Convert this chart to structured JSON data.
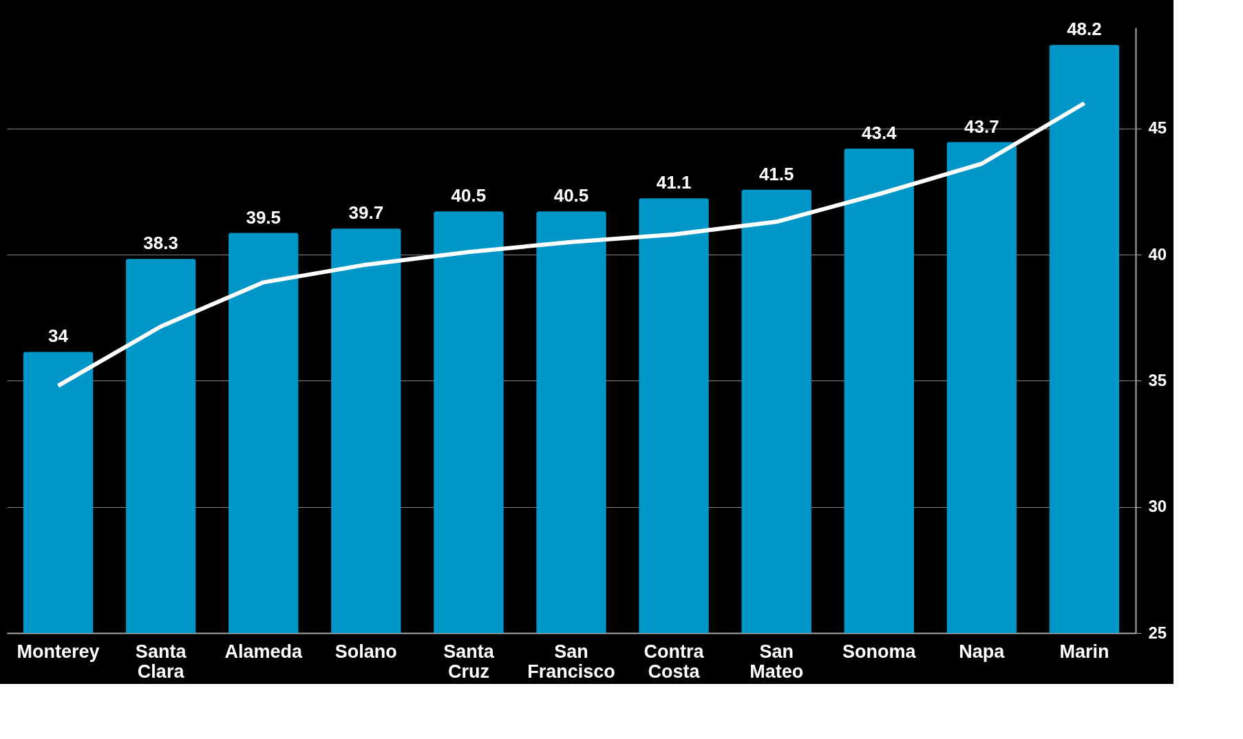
{
  "chart_data": {
    "type": "bar",
    "categories": [
      "Monterey",
      "Santa Clara",
      "Alameda",
      "Solano",
      "Santa Cruz",
      "San Francisco",
      "Contra Costa",
      "San Mateo",
      "Sonoma",
      "Napa",
      "Marin"
    ],
    "series": [
      {
        "color": "#0096c8",
        "values": [
          34,
          38.3,
          39.5,
          39.7,
          40.5,
          40.5,
          41.1,
          41.5,
          43.4,
          43.7,
          48.2
        ],
        "value_labels": [
          "34",
          "38.3",
          "39.5",
          "39.7",
          "40.5",
          "40.5",
          "41.1",
          "41.5",
          "43.4",
          "43.7",
          "48.2"
        ]
      },
      {
        "type": "line",
        "axis": "y2",
        "color": "#ffffff",
        "values": [
          34.8,
          37.15,
          38.9,
          39.6,
          40.1,
          40.5,
          40.8,
          41.3,
          42.4,
          43.6,
          46.0
        ]
      }
    ],
    "ylim": [
      21,
      49
    ],
    "y2lim": [
      25,
      49
    ],
    "y2ticks": [
      25,
      30,
      35,
      40,
      45
    ],
    "grid": "y2",
    "line_style": "solid",
    "marker": "none"
  }
}
